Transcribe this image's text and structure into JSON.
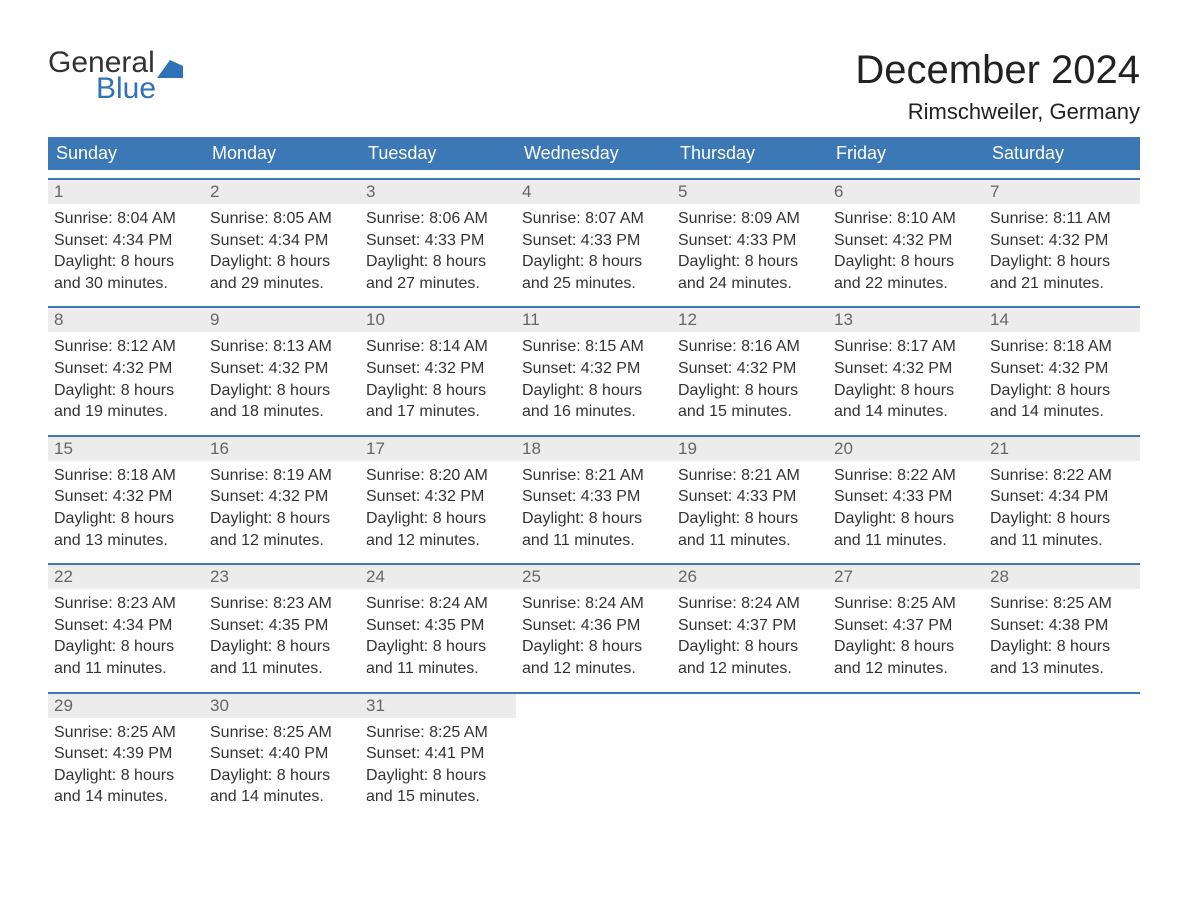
{
  "brand": {
    "word1": "General",
    "word2": "Blue",
    "word1_color": "#333333",
    "word2_color": "#2f72b6",
    "flag_color": "#2f72b6"
  },
  "title": "December 2024",
  "location": "Rimschweiler, Germany",
  "style": {
    "header_bg": "#3b78b5",
    "header_text": "#ffffff",
    "week_border": "#3b78b5",
    "daynum_bg": "#ececec",
    "daynum_text": "#666666",
    "body_text": "#333333",
    "page_bg": "#ffffff",
    "title_fontsize": 40,
    "location_fontsize": 22,
    "header_fontsize": 18,
    "daynum_fontsize": 17,
    "detail_fontsize": 16
  },
  "day_headers": [
    "Sunday",
    "Monday",
    "Tuesday",
    "Wednesday",
    "Thursday",
    "Friday",
    "Saturday"
  ],
  "weeks": [
    [
      {
        "n": "1",
        "sunrise": "8:04 AM",
        "sunset": "4:34 PM",
        "daylight": "8 hours and 30 minutes."
      },
      {
        "n": "2",
        "sunrise": "8:05 AM",
        "sunset": "4:34 PM",
        "daylight": "8 hours and 29 minutes."
      },
      {
        "n": "3",
        "sunrise": "8:06 AM",
        "sunset": "4:33 PM",
        "daylight": "8 hours and 27 minutes."
      },
      {
        "n": "4",
        "sunrise": "8:07 AM",
        "sunset": "4:33 PM",
        "daylight": "8 hours and 25 minutes."
      },
      {
        "n": "5",
        "sunrise": "8:09 AM",
        "sunset": "4:33 PM",
        "daylight": "8 hours and 24 minutes."
      },
      {
        "n": "6",
        "sunrise": "8:10 AM",
        "sunset": "4:32 PM",
        "daylight": "8 hours and 22 minutes."
      },
      {
        "n": "7",
        "sunrise": "8:11 AM",
        "sunset": "4:32 PM",
        "daylight": "8 hours and 21 minutes."
      }
    ],
    [
      {
        "n": "8",
        "sunrise": "8:12 AM",
        "sunset": "4:32 PM",
        "daylight": "8 hours and 19 minutes."
      },
      {
        "n": "9",
        "sunrise": "8:13 AM",
        "sunset": "4:32 PM",
        "daylight": "8 hours and 18 minutes."
      },
      {
        "n": "10",
        "sunrise": "8:14 AM",
        "sunset": "4:32 PM",
        "daylight": "8 hours and 17 minutes."
      },
      {
        "n": "11",
        "sunrise": "8:15 AM",
        "sunset": "4:32 PM",
        "daylight": "8 hours and 16 minutes."
      },
      {
        "n": "12",
        "sunrise": "8:16 AM",
        "sunset": "4:32 PM",
        "daylight": "8 hours and 15 minutes."
      },
      {
        "n": "13",
        "sunrise": "8:17 AM",
        "sunset": "4:32 PM",
        "daylight": "8 hours and 14 minutes."
      },
      {
        "n": "14",
        "sunrise": "8:18 AM",
        "sunset": "4:32 PM",
        "daylight": "8 hours and 14 minutes."
      }
    ],
    [
      {
        "n": "15",
        "sunrise": "8:18 AM",
        "sunset": "4:32 PM",
        "daylight": "8 hours and 13 minutes."
      },
      {
        "n": "16",
        "sunrise": "8:19 AM",
        "sunset": "4:32 PM",
        "daylight": "8 hours and 12 minutes."
      },
      {
        "n": "17",
        "sunrise": "8:20 AM",
        "sunset": "4:32 PM",
        "daylight": "8 hours and 12 minutes."
      },
      {
        "n": "18",
        "sunrise": "8:21 AM",
        "sunset": "4:33 PM",
        "daylight": "8 hours and 11 minutes."
      },
      {
        "n": "19",
        "sunrise": "8:21 AM",
        "sunset": "4:33 PM",
        "daylight": "8 hours and 11 minutes."
      },
      {
        "n": "20",
        "sunrise": "8:22 AM",
        "sunset": "4:33 PM",
        "daylight": "8 hours and 11 minutes."
      },
      {
        "n": "21",
        "sunrise": "8:22 AM",
        "sunset": "4:34 PM",
        "daylight": "8 hours and 11 minutes."
      }
    ],
    [
      {
        "n": "22",
        "sunrise": "8:23 AM",
        "sunset": "4:34 PM",
        "daylight": "8 hours and 11 minutes."
      },
      {
        "n": "23",
        "sunrise": "8:23 AM",
        "sunset": "4:35 PM",
        "daylight": "8 hours and 11 minutes."
      },
      {
        "n": "24",
        "sunrise": "8:24 AM",
        "sunset": "4:35 PM",
        "daylight": "8 hours and 11 minutes."
      },
      {
        "n": "25",
        "sunrise": "8:24 AM",
        "sunset": "4:36 PM",
        "daylight": "8 hours and 12 minutes."
      },
      {
        "n": "26",
        "sunrise": "8:24 AM",
        "sunset": "4:37 PM",
        "daylight": "8 hours and 12 minutes."
      },
      {
        "n": "27",
        "sunrise": "8:25 AM",
        "sunset": "4:37 PM",
        "daylight": "8 hours and 12 minutes."
      },
      {
        "n": "28",
        "sunrise": "8:25 AM",
        "sunset": "4:38 PM",
        "daylight": "8 hours and 13 minutes."
      }
    ],
    [
      {
        "n": "29",
        "sunrise": "8:25 AM",
        "sunset": "4:39 PM",
        "daylight": "8 hours and 14 minutes."
      },
      {
        "n": "30",
        "sunrise": "8:25 AM",
        "sunset": "4:40 PM",
        "daylight": "8 hours and 14 minutes."
      },
      {
        "n": "31",
        "sunrise": "8:25 AM",
        "sunset": "4:41 PM",
        "daylight": "8 hours and 15 minutes."
      },
      null,
      null,
      null,
      null
    ]
  ],
  "labels": {
    "sunrise": "Sunrise: ",
    "sunset": "Sunset: ",
    "daylight": "Daylight: "
  }
}
